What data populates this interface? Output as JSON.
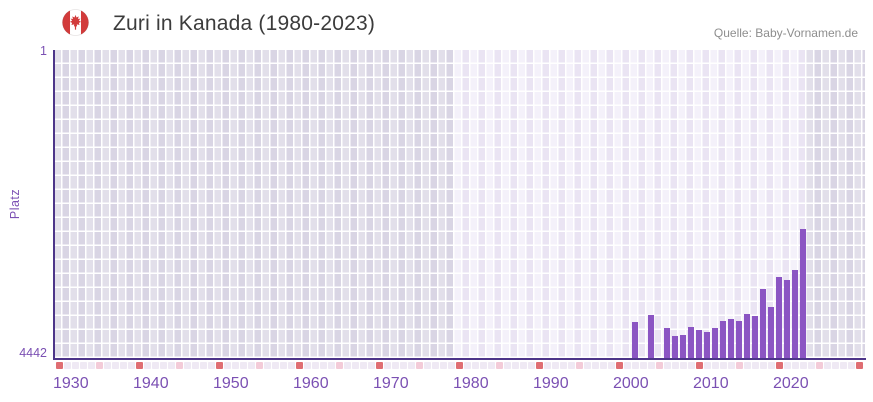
{
  "header": {
    "title": "Zuri in Kanada (1980-2023)",
    "source": "Quelle: Baby-Vornamen.de",
    "flag_icon": "canada-flag-icon"
  },
  "chart_data": {
    "type": "bar",
    "title": "Zuri in Kanada (1980-2023)",
    "ylabel": "Platz",
    "y_axis": {
      "top_label": "1",
      "bottom_label": "4442",
      "min": 1,
      "max": 4442,
      "inverted": true
    },
    "x_axis": {
      "min": 1930,
      "max": 2030,
      "tick_years": [
        1930,
        1940,
        1950,
        1960,
        1970,
        1980,
        1990,
        2000,
        2010,
        2020
      ],
      "decade_marker_years": [
        1930,
        1940,
        1950,
        1960,
        1970,
        1980,
        1990,
        2000,
        2010,
        2020,
        2030
      ],
      "half_decade_marker_years": [
        1935,
        1945,
        1955,
        1965,
        1975,
        1985,
        1995,
        2005,
        2015,
        2025
      ]
    },
    "highlight_period": {
      "from": 1980,
      "to": 2023
    },
    "series": [
      {
        "name": "Platz",
        "points": [
          {
            "year": 2002,
            "rank": 3910
          },
          {
            "year": 2004,
            "rank": 3815
          },
          {
            "year": 2006,
            "rank": 3990
          },
          {
            "year": 2007,
            "rank": 4110
          },
          {
            "year": 2008,
            "rank": 4090
          },
          {
            "year": 2009,
            "rank": 3980
          },
          {
            "year": 2010,
            "rank": 4030
          },
          {
            "year": 2011,
            "rank": 4050
          },
          {
            "year": 2012,
            "rank": 4000
          },
          {
            "year": 2013,
            "rank": 3900
          },
          {
            "year": 2014,
            "rank": 3860
          },
          {
            "year": 2015,
            "rank": 3890
          },
          {
            "year": 2016,
            "rank": 3790
          },
          {
            "year": 2017,
            "rank": 3820
          },
          {
            "year": 2018,
            "rank": 3430
          },
          {
            "year": 2019,
            "rank": 3690
          },
          {
            "year": 2020,
            "rank": 3270
          },
          {
            "year": 2021,
            "rank": 3310
          },
          {
            "year": 2022,
            "rank": 3170
          },
          {
            "year": 2023,
            "rank": 2570
          }
        ]
      }
    ]
  },
  "colors": {
    "bar": "#8B55C3",
    "axis_line": "#4D3589",
    "axis_label": "#7B50B3",
    "title_text": "#3C3C3C",
    "source_text": "#8E8E8E",
    "flag_red": "#D23B3B",
    "highlight_bg_light": "#F4F1FA",
    "highlight_bg_dark": "#EAE4F3",
    "dim_bg_light": "#E2DFEA",
    "dim_bg_dark": "#D9D5E4",
    "marker_decade": "#DF6D72",
    "marker_half_decade": "#F3CBD8",
    "marker_default": "#EFE9F4"
  }
}
